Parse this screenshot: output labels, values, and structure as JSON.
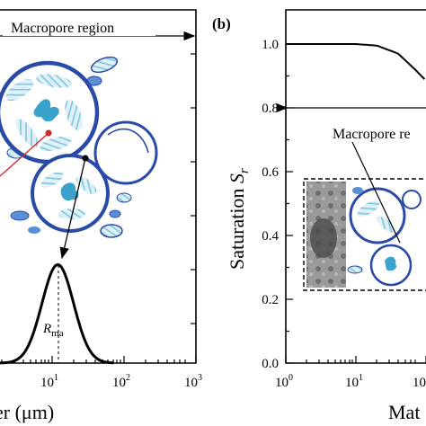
{
  "left_panel": {
    "region_label": "Macropore region",
    "peak_label_main": "R",
    "peak_label_sub": "ma",
    "xlabel_visible": "er (μm)",
    "x_ticks": [
      {
        "base": "10",
        "exp": "1"
      },
      {
        "base": "10",
        "exp": "2"
      },
      {
        "base": "10",
        "exp": "3"
      }
    ]
  },
  "right_panel": {
    "panel_label": "(b)",
    "ylabel_main": "Saturation ",
    "ylabel_var": "S",
    "ylabel_sub": "r",
    "region_label": "Macropore re",
    "xlabel_visible": "Mat",
    "y_ticks": [
      "1.0",
      "0.8",
      "0.6",
      "0.4",
      "0.2",
      "0.0"
    ],
    "x_ticks": [
      {
        "base": "10",
        "exp": "0"
      },
      {
        "base": "10",
        "exp": "1"
      },
      {
        "base": "10",
        "exp": "1"
      }
    ]
  },
  "colors": {
    "pore_blue": "#2a4aa8",
    "clay_light": "#7fc4dc",
    "soil_gray": "#8a8a8a"
  },
  "chart_data": [
    {
      "type": "line",
      "title": "",
      "xlabel": "er (μm)",
      "x_scale": "log",
      "x": [
        1.5,
        3,
        5,
        8,
        12,
        18,
        28,
        45,
        70
      ],
      "series": [
        {
          "values": [
            0.0,
            0.03,
            0.22,
            0.62,
            0.8,
            0.6,
            0.22,
            0.04,
            0.0
          ]
        }
      ],
      "annotations": [
        "Macropore region",
        "R_ma"
      ]
    },
    {
      "type": "line",
      "title": "",
      "xlabel": "Mat",
      "ylabel": "Saturation S_r",
      "x_scale": "log",
      "ylim": [
        0.0,
        1.1
      ],
      "x": [
        1,
        10,
        20,
        40,
        70,
        100,
        150
      ],
      "series": [
        {
          "values": [
            1.0,
            1.0,
            0.995,
            0.97,
            0.92,
            0.885,
            0.87
          ]
        }
      ],
      "annotations": [
        "Macropore re"
      ]
    }
  ]
}
